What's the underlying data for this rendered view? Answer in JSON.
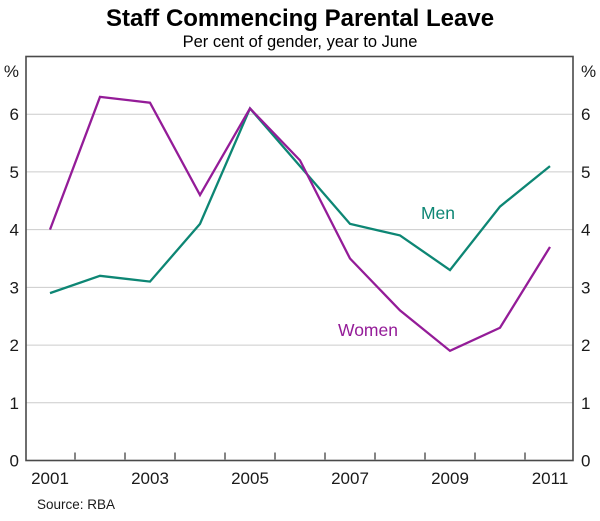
{
  "chart_data": {
    "type": "line",
    "title": "Staff Commencing Parental Leave",
    "subtitle": "Per cent of gender, year to June",
    "unit_label": "%",
    "x": [
      2001,
      2002,
      2003,
      2004,
      2005,
      2006,
      2007,
      2008,
      2009,
      2010,
      2011
    ],
    "series": [
      {
        "name": "Men",
        "color": "#0d8674",
        "values": [
          2.9,
          3.2,
          3.1,
          4.1,
          6.1,
          5.1,
          4.1,
          3.9,
          3.3,
          4.4,
          5.1
        ],
        "label_pos": {
          "x": 2008.76,
          "y": 4.29
        }
      },
      {
        "name": "Women",
        "color": "#941c98",
        "values": [
          4.0,
          6.3,
          6.2,
          4.6,
          6.1,
          5.2,
          3.5,
          2.6,
          1.9,
          2.3,
          3.7
        ],
        "label_pos": {
          "x": 2007.36,
          "y": 2.26
        }
      }
    ],
    "ylim": [
      0,
      7
    ],
    "yticks": [
      0,
      1,
      2,
      3,
      4,
      5,
      6
    ],
    "xtick_labels": [
      2001,
      2003,
      2005,
      2007,
      2009,
      2011
    ],
    "grid": "horizontal",
    "legend_position": "inline-labels",
    "axis_label_left": "%",
    "axis_label_right": "%",
    "source": "Source: RBA",
    "colors": {
      "gridline": "#cccccc",
      "plot_border": "#4a4a4a",
      "tick": "#333333",
      "text": "#1a1a1a"
    }
  }
}
